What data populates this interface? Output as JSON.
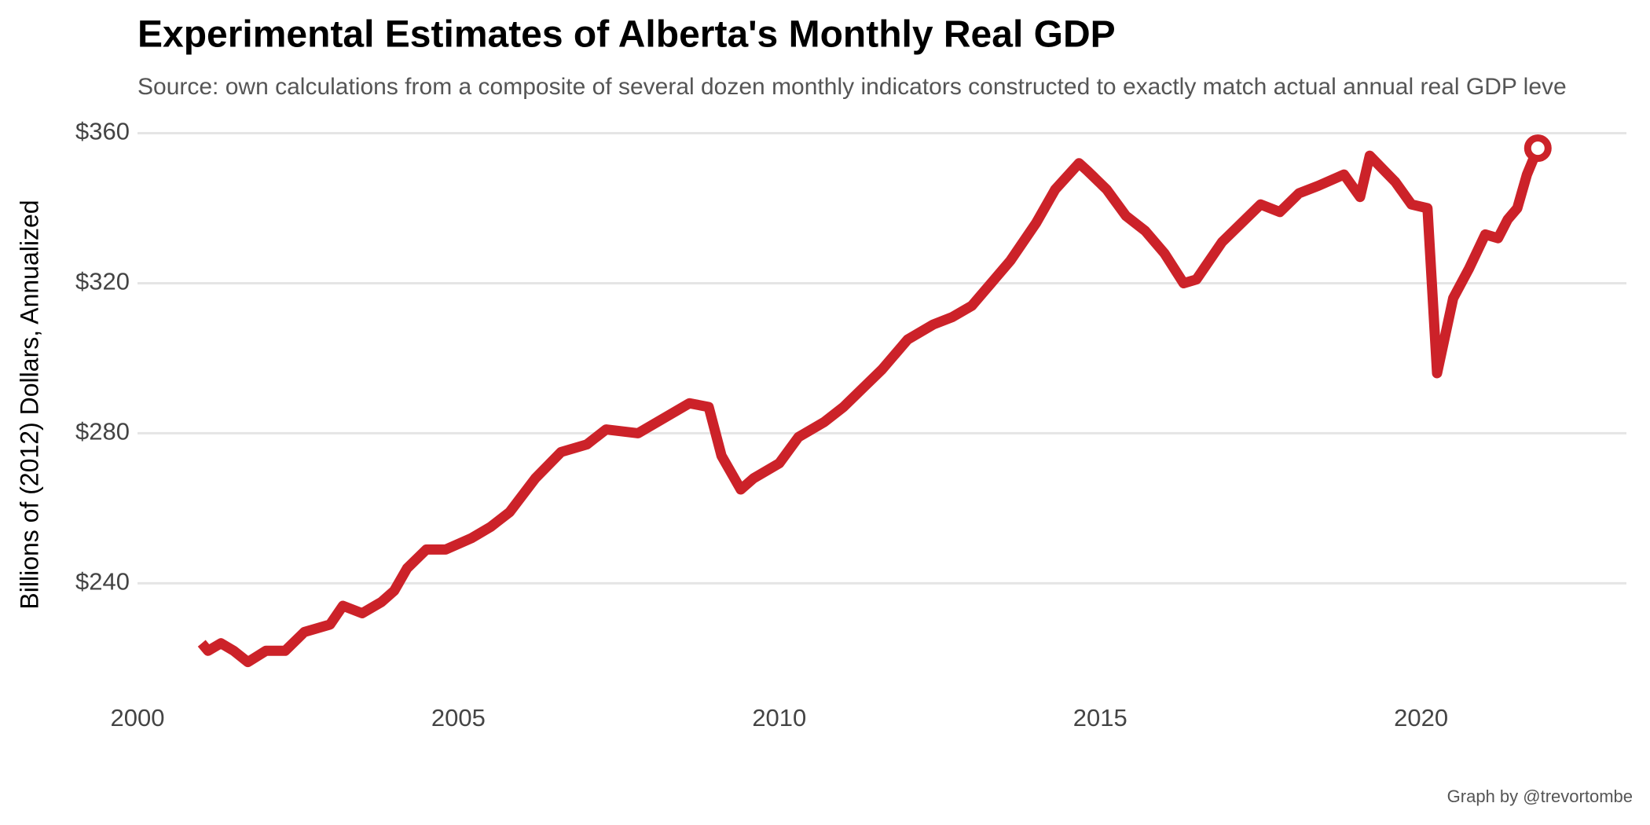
{
  "chart_data": {
    "type": "line",
    "title": "Experimental Estimates of Alberta's Monthly Real GDP",
    "subtitle": "Source: own calculations from a composite of several dozen monthly indicators constructed to exactly match actual annual real GDP leve",
    "y_label": "Billions of (2012) Dollars, Annualized",
    "caption": "Graph by @trevortombe",
    "x": [
      2001.0,
      2001.1,
      2001.3,
      2001.5,
      2001.72,
      2002.0,
      2002.3,
      2002.6,
      2003.0,
      2003.2,
      2003.5,
      2003.8,
      2004.0,
      2004.2,
      2004.5,
      2004.8,
      2005.2,
      2005.5,
      2005.8,
      2006.2,
      2006.6,
      2007.0,
      2007.3,
      2007.8,
      2008.3,
      2008.6,
      2008.9,
      2009.1,
      2009.4,
      2009.6,
      2010.0,
      2010.3,
      2010.7,
      2011.0,
      2011.3,
      2011.6,
      2012.0,
      2012.4,
      2012.7,
      2013.0,
      2013.3,
      2013.6,
      2014.0,
      2014.3,
      2014.67,
      2014.8,
      2015.1,
      2015.4,
      2015.7,
      2016.0,
      2016.3,
      2016.5,
      2016.9,
      2017.5,
      2017.8,
      2018.1,
      2018.4,
      2018.8,
      2019.05,
      2019.2,
      2019.6,
      2019.85,
      2020.1,
      2020.25,
      2020.5,
      2020.75,
      2021.0,
      2021.2,
      2021.35,
      2021.5,
      2021.65,
      2021.82
    ],
    "series": [
      {
        "name": "Real GDP",
        "color": "#cc2229",
        "values": [
          224,
          222,
          224,
          222,
          219,
          222,
          222,
          227,
          229,
          234,
          232,
          235,
          238,
          244,
          249,
          249,
          252,
          255,
          259,
          268,
          275,
          277,
          281,
          280,
          285,
          288,
          287,
          274,
          265,
          268,
          272,
          279,
          283,
          287,
          292,
          297,
          305,
          309,
          311,
          314,
          320,
          326,
          336,
          345,
          352,
          350,
          345,
          338,
          334,
          328,
          320,
          321,
          331,
          341,
          339,
          344,
          346,
          349,
          343,
          354,
          347,
          341,
          340,
          296,
          316,
          324,
          333,
          332,
          337,
          340,
          349,
          356
        ]
      }
    ],
    "xlim": [
      2000,
      2023.2
    ],
    "ylim": [
      212,
      362
    ],
    "xticks": [
      2000,
      2005,
      2010,
      2015,
      2020
    ],
    "yticks": [
      {
        "value": 240,
        "label": "$240"
      },
      {
        "value": 280,
        "label": "$280"
      },
      {
        "value": 320,
        "label": "$320"
      },
      {
        "value": 360,
        "label": "$360"
      }
    ],
    "grid": true
  }
}
